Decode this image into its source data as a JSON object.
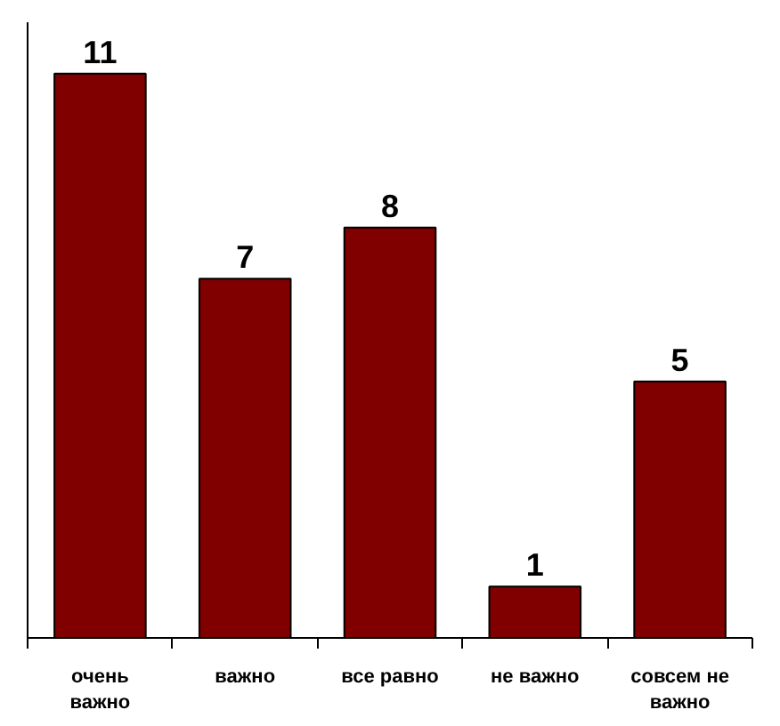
{
  "chart_data": {
    "type": "bar",
    "categories": [
      "очень важно",
      "важно",
      "все равно",
      "не важно",
      "совсем не важно"
    ],
    "values": [
      11,
      7,
      8,
      1,
      5
    ],
    "color": "#800000",
    "ylim": [
      0,
      12
    ],
    "data_labels": true
  }
}
